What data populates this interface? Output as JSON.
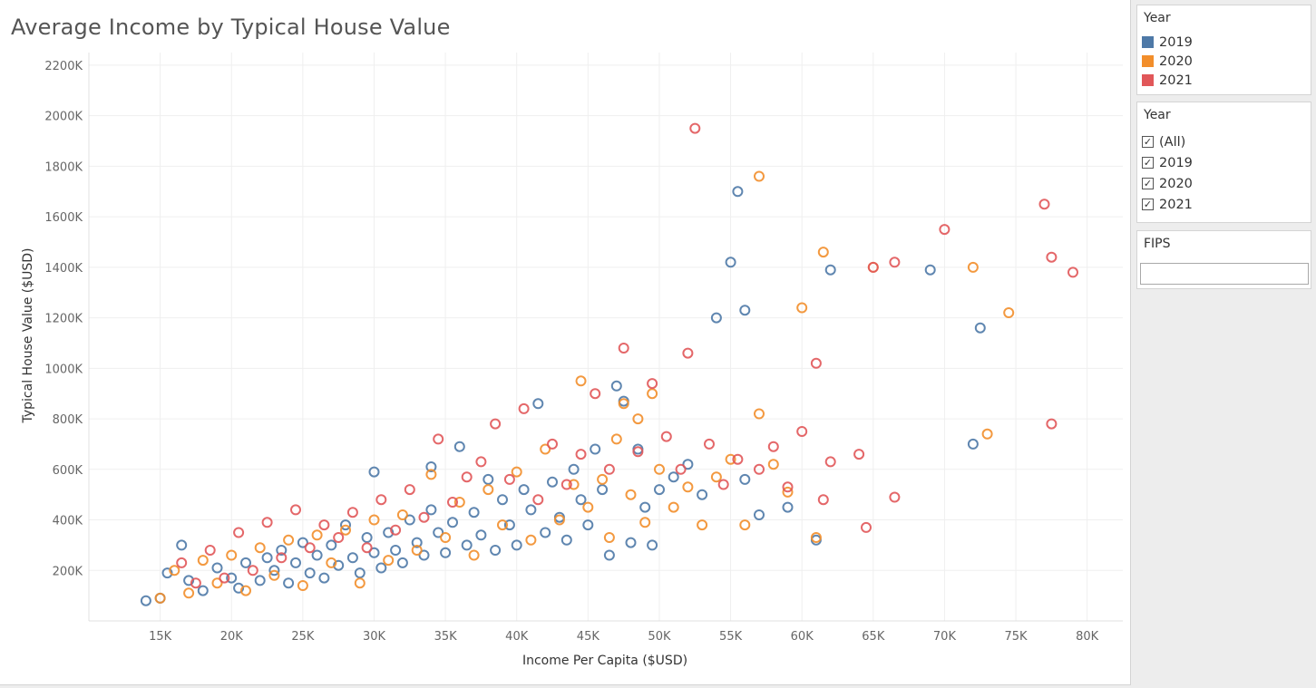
{
  "chart_data": {
    "type": "scatter",
    "title": "Average Income by Typical House Value",
    "xlabel": "Income Per Capita ($USD)",
    "ylabel": "Typical House Value ($USD)",
    "xlim": [
      10000,
      82500
    ],
    "ylim": [
      0,
      2250000
    ],
    "x_ticks": [
      15000,
      20000,
      25000,
      30000,
      35000,
      40000,
      45000,
      50000,
      55000,
      60000,
      65000,
      70000,
      75000,
      80000
    ],
    "x_tick_labels": [
      "15K",
      "20K",
      "25K",
      "30K",
      "35K",
      "40K",
      "45K",
      "50K",
      "55K",
      "60K",
      "65K",
      "70K",
      "75K",
      "80K"
    ],
    "y_ticks": [
      200000,
      400000,
      600000,
      800000,
      1000000,
      1200000,
      1400000,
      1600000,
      1800000,
      2000000,
      2200000
    ],
    "y_tick_labels": [
      "200K",
      "400K",
      "600K",
      "800K",
      "1000K",
      "1200K",
      "1400K",
      "1600K",
      "1800K",
      "2000K",
      "2200K"
    ],
    "grid": true,
    "marker": "hollow-circle",
    "series": [
      {
        "name": "2019",
        "color": "#4e79a7",
        "points": [
          [
            14000,
            80000
          ],
          [
            15000,
            90000
          ],
          [
            15500,
            190000
          ],
          [
            16500,
            300000
          ],
          [
            17000,
            160000
          ],
          [
            18000,
            120000
          ],
          [
            19000,
            210000
          ],
          [
            20000,
            170000
          ],
          [
            20500,
            130000
          ],
          [
            21000,
            230000
          ],
          [
            22000,
            160000
          ],
          [
            22500,
            250000
          ],
          [
            23000,
            200000
          ],
          [
            23500,
            280000
          ],
          [
            24000,
            150000
          ],
          [
            24500,
            230000
          ],
          [
            25000,
            310000
          ],
          [
            25500,
            190000
          ],
          [
            26000,
            260000
          ],
          [
            26500,
            170000
          ],
          [
            27000,
            300000
          ],
          [
            27500,
            220000
          ],
          [
            28000,
            380000
          ],
          [
            28500,
            250000
          ],
          [
            29000,
            190000
          ],
          [
            29500,
            330000
          ],
          [
            30000,
            270000
          ],
          [
            30000,
            590000
          ],
          [
            30500,
            210000
          ],
          [
            31000,
            350000
          ],
          [
            31500,
            280000
          ],
          [
            32000,
            230000
          ],
          [
            32500,
            400000
          ],
          [
            33000,
            310000
          ],
          [
            33500,
            260000
          ],
          [
            34000,
            610000
          ],
          [
            34000,
            440000
          ],
          [
            34500,
            350000
          ],
          [
            35000,
            270000
          ],
          [
            35500,
            390000
          ],
          [
            36000,
            690000
          ],
          [
            36500,
            300000
          ],
          [
            37000,
            430000
          ],
          [
            37500,
            340000
          ],
          [
            38000,
            560000
          ],
          [
            38500,
            280000
          ],
          [
            39000,
            480000
          ],
          [
            39500,
            380000
          ],
          [
            40000,
            300000
          ],
          [
            40500,
            520000
          ],
          [
            41000,
            440000
          ],
          [
            41500,
            860000
          ],
          [
            42000,
            350000
          ],
          [
            42500,
            550000
          ],
          [
            43000,
            410000
          ],
          [
            43500,
            320000
          ],
          [
            44000,
            600000
          ],
          [
            44500,
            480000
          ],
          [
            45000,
            380000
          ],
          [
            45500,
            680000
          ],
          [
            46000,
            520000
          ],
          [
            46500,
            260000
          ],
          [
            47000,
            930000
          ],
          [
            47500,
            870000
          ],
          [
            48000,
            310000
          ],
          [
            48500,
            680000
          ],
          [
            49000,
            450000
          ],
          [
            49500,
            300000
          ],
          [
            50000,
            520000
          ],
          [
            51000,
            570000
          ],
          [
            52000,
            620000
          ],
          [
            53000,
            500000
          ],
          [
            54000,
            1200000
          ],
          [
            55000,
            1420000
          ],
          [
            55500,
            1700000
          ],
          [
            56000,
            1230000
          ],
          [
            56000,
            560000
          ],
          [
            57000,
            420000
          ],
          [
            59000,
            450000
          ],
          [
            61000,
            320000
          ],
          [
            62000,
            1390000
          ],
          [
            69000,
            1390000
          ],
          [
            72000,
            700000
          ],
          [
            72500,
            1160000
          ]
        ]
      },
      {
        "name": "2020",
        "color": "#f28e2b",
        "points": [
          [
            15000,
            90000
          ],
          [
            16000,
            200000
          ],
          [
            17000,
            110000
          ],
          [
            18000,
            240000
          ],
          [
            19000,
            150000
          ],
          [
            20000,
            260000
          ],
          [
            21000,
            120000
          ],
          [
            22000,
            290000
          ],
          [
            23000,
            180000
          ],
          [
            24000,
            320000
          ],
          [
            25000,
            140000
          ],
          [
            26000,
            340000
          ],
          [
            27000,
            230000
          ],
          [
            28000,
            360000
          ],
          [
            29000,
            150000
          ],
          [
            30000,
            400000
          ],
          [
            31000,
            240000
          ],
          [
            32000,
            420000
          ],
          [
            33000,
            280000
          ],
          [
            34000,
            580000
          ],
          [
            35000,
            330000
          ],
          [
            36000,
            470000
          ],
          [
            37000,
            260000
          ],
          [
            38000,
            520000
          ],
          [
            39000,
            380000
          ],
          [
            40000,
            590000
          ],
          [
            41000,
            320000
          ],
          [
            42000,
            680000
          ],
          [
            43000,
            400000
          ],
          [
            44000,
            540000
          ],
          [
            44500,
            950000
          ],
          [
            45000,
            450000
          ],
          [
            46000,
            560000
          ],
          [
            46500,
            330000
          ],
          [
            47000,
            720000
          ],
          [
            47500,
            860000
          ],
          [
            48000,
            500000
          ],
          [
            48500,
            800000
          ],
          [
            49000,
            390000
          ],
          [
            49500,
            900000
          ],
          [
            50000,
            600000
          ],
          [
            51000,
            450000
          ],
          [
            52000,
            530000
          ],
          [
            53000,
            380000
          ],
          [
            54000,
            570000
          ],
          [
            55000,
            640000
          ],
          [
            56000,
            380000
          ],
          [
            57000,
            1760000
          ],
          [
            57000,
            820000
          ],
          [
            58000,
            620000
          ],
          [
            59000,
            510000
          ],
          [
            60000,
            1240000
          ],
          [
            61000,
            330000
          ],
          [
            61500,
            1460000
          ],
          [
            65000,
            1400000
          ],
          [
            72000,
            1400000
          ],
          [
            73000,
            740000
          ],
          [
            74500,
            1220000
          ]
        ]
      },
      {
        "name": "2021",
        "color": "#e15759",
        "points": [
          [
            16500,
            230000
          ],
          [
            17500,
            150000
          ],
          [
            18500,
            280000
          ],
          [
            19500,
            170000
          ],
          [
            20500,
            350000
          ],
          [
            21500,
            200000
          ],
          [
            22500,
            390000
          ],
          [
            23500,
            250000
          ],
          [
            24500,
            440000
          ],
          [
            25500,
            290000
          ],
          [
            26500,
            380000
          ],
          [
            27500,
            330000
          ],
          [
            28500,
            430000
          ],
          [
            29500,
            290000
          ],
          [
            30500,
            480000
          ],
          [
            31500,
            360000
          ],
          [
            32500,
            520000
          ],
          [
            33500,
            410000
          ],
          [
            34500,
            720000
          ],
          [
            35500,
            470000
          ],
          [
            36500,
            570000
          ],
          [
            37500,
            630000
          ],
          [
            38500,
            780000
          ],
          [
            39500,
            560000
          ],
          [
            40500,
            840000
          ],
          [
            41500,
            480000
          ],
          [
            42500,
            700000
          ],
          [
            43500,
            540000
          ],
          [
            44500,
            660000
          ],
          [
            45500,
            900000
          ],
          [
            46500,
            600000
          ],
          [
            47500,
            1080000
          ],
          [
            48500,
            670000
          ],
          [
            49500,
            940000
          ],
          [
            50500,
            730000
          ],
          [
            51500,
            600000
          ],
          [
            52000,
            1060000
          ],
          [
            52500,
            1950000
          ],
          [
            53500,
            700000
          ],
          [
            54500,
            540000
          ],
          [
            55500,
            640000
          ],
          [
            57000,
            600000
          ],
          [
            58000,
            690000
          ],
          [
            59000,
            530000
          ],
          [
            60000,
            750000
          ],
          [
            61000,
            1020000
          ],
          [
            61500,
            480000
          ],
          [
            62000,
            630000
          ],
          [
            64000,
            660000
          ],
          [
            64500,
            370000
          ],
          [
            65000,
            1400000
          ],
          [
            66500,
            1420000
          ],
          [
            66500,
            490000
          ],
          [
            70000,
            1550000
          ],
          [
            77000,
            1650000
          ],
          [
            77500,
            1440000
          ],
          [
            77500,
            780000
          ],
          [
            79000,
            1380000
          ]
        ]
      }
    ]
  },
  "legend_card": {
    "title": "Year",
    "items": [
      {
        "label": "2019",
        "color": "#4e79a7"
      },
      {
        "label": "2020",
        "color": "#f28e2b"
      },
      {
        "label": "2021",
        "color": "#e15759"
      }
    ]
  },
  "year_filter": {
    "title": "Year",
    "options": [
      {
        "label": "(All)",
        "checked": true
      },
      {
        "label": "2019",
        "checked": true
      },
      {
        "label": "2020",
        "checked": true
      },
      {
        "label": "2021",
        "checked": true
      }
    ]
  },
  "fips_filter": {
    "title": "FIPS",
    "value": ""
  }
}
